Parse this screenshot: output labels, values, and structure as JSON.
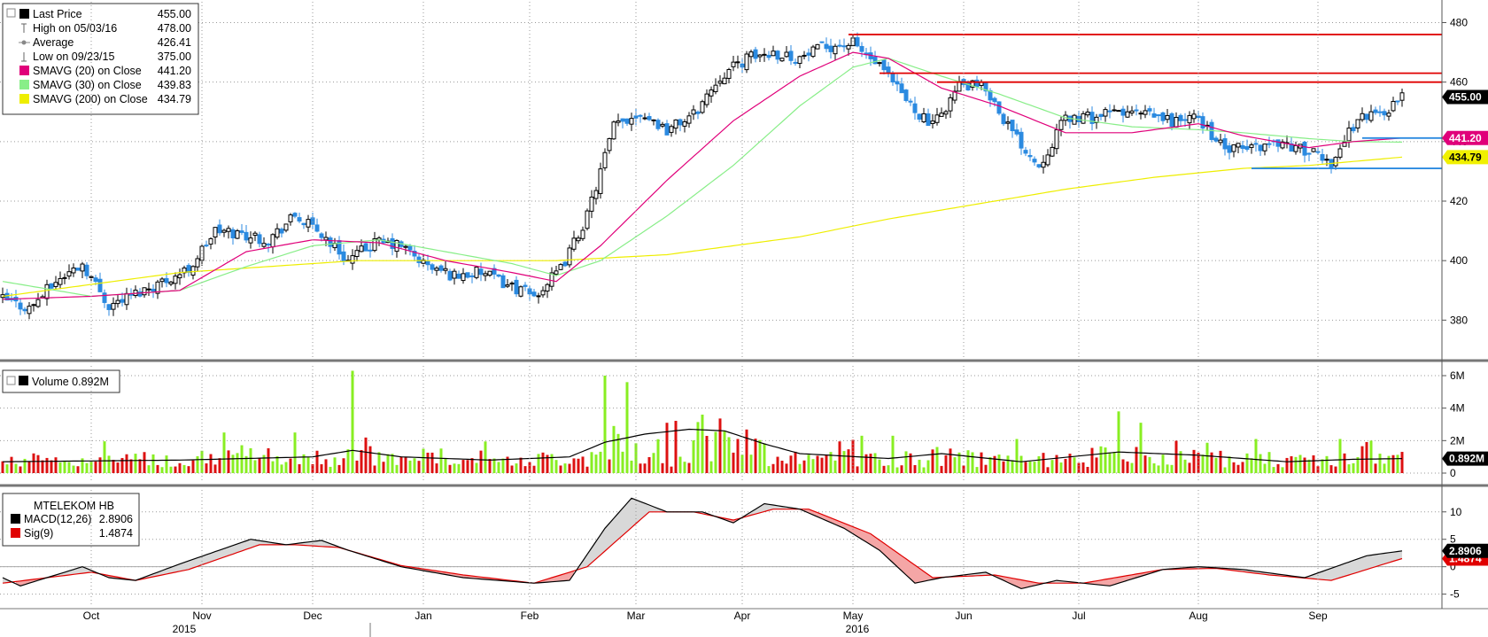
{
  "chart_data": [
    {
      "type": "candlestick",
      "panel": "price",
      "legend": [
        {
          "label": "Last Price",
          "value": "455.00",
          "color": "#000000",
          "marker": "square"
        },
        {
          "label": "High on 05/03/16",
          "value": "478.00",
          "color": "#666666",
          "marker": "high"
        },
        {
          "label": "Average",
          "value": "426.41",
          "color": "#888888",
          "marker": "avg"
        },
        {
          "label": "Low on 09/23/15",
          "value": "375.00",
          "color": "#666666",
          "marker": "low"
        },
        {
          "label": "SMAVG (20) on Close",
          "value": "441.20",
          "color": "#e0007a",
          "marker": "square"
        },
        {
          "label": "SMAVG (30) on Close",
          "value": "439.83",
          "color": "#88ee88",
          "marker": "square"
        },
        {
          "label": "SMAVG (200) on Close",
          "value": "434.79",
          "color": "#eeee00",
          "marker": "square"
        }
      ],
      "yticks": [
        380,
        400,
        420,
        440,
        460,
        480
      ],
      "ylim": [
        367,
        487
      ],
      "last_tags": [
        {
          "value": 455.0,
          "label": "455.00",
          "bg": "#000000",
          "fg": "#ffffff"
        },
        {
          "value": 441.2,
          "label": "441.20",
          "bg": "#e0007a",
          "fg": "#ffffff"
        },
        {
          "value": 434.79,
          "label": "434.79",
          "bg": "#f0f000",
          "fg": "#000000"
        }
      ],
      "close_anchors": [
        [
          0,
          387
        ],
        [
          6,
          384
        ],
        [
          12,
          393
        ],
        [
          18,
          399
        ],
        [
          24,
          385
        ],
        [
          30,
          389
        ],
        [
          36,
          393
        ],
        [
          42,
          397
        ],
        [
          48,
          410
        ],
        [
          54,
          409
        ],
        [
          60,
          407
        ],
        [
          66,
          415
        ],
        [
          72,
          409
        ],
        [
          78,
          400
        ],
        [
          84,
          406
        ],
        [
          90,
          405
        ],
        [
          96,
          398
        ],
        [
          102,
          395
        ],
        [
          108,
          396
        ],
        [
          114,
          392
        ],
        [
          120,
          388
        ],
        [
          126,
          397
        ],
        [
          132,
          415
        ],
        [
          138,
          445
        ],
        [
          144,
          450
        ],
        [
          150,
          444
        ],
        [
          156,
          449
        ],
        [
          162,
          462
        ],
        [
          168,
          468
        ],
        [
          174,
          470
        ],
        [
          180,
          468
        ],
        [
          186,
          472
        ],
        [
          192,
          473
        ],
        [
          198,
          465
        ],
        [
          204,
          454
        ],
        [
          210,
          445
        ],
        [
          216,
          459
        ],
        [
          222,
          458
        ],
        [
          228,
          443
        ],
        [
          234,
          432
        ],
        [
          240,
          448
        ],
        [
          246,
          448
        ],
        [
          252,
          450
        ],
        [
          258,
          449
        ],
        [
          264,
          447
        ],
        [
          270,
          448
        ],
        [
          276,
          437
        ],
        [
          282,
          438
        ],
        [
          288,
          440
        ],
        [
          294,
          437
        ],
        [
          300,
          433
        ],
        [
          306,
          448
        ],
        [
          312,
          450
        ],
        [
          316,
          455
        ]
      ],
      "sma20_anchors": [
        [
          0,
          387
        ],
        [
          20,
          388
        ],
        [
          40,
          390
        ],
        [
          55,
          403
        ],
        [
          70,
          407
        ],
        [
          85,
          406
        ],
        [
          100,
          400
        ],
        [
          115,
          396
        ],
        [
          125,
          393
        ],
        [
          135,
          405
        ],
        [
          150,
          427
        ],
        [
          165,
          447
        ],
        [
          180,
          462
        ],
        [
          192,
          470
        ],
        [
          200,
          468
        ],
        [
          212,
          458
        ],
        [
          225,
          452
        ],
        [
          240,
          443
        ],
        [
          255,
          443
        ],
        [
          270,
          446
        ],
        [
          280,
          442
        ],
        [
          295,
          438
        ],
        [
          305,
          440
        ],
        [
          316,
          441.2
        ]
      ],
      "sma30_anchors": [
        [
          0,
          393
        ],
        [
          20,
          388
        ],
        [
          40,
          390
        ],
        [
          55,
          398
        ],
        [
          70,
          405
        ],
        [
          85,
          407
        ],
        [
          100,
          403
        ],
        [
          115,
          399
        ],
        [
          125,
          395
        ],
        [
          135,
          400
        ],
        [
          150,
          415
        ],
        [
          165,
          432
        ],
        [
          180,
          452
        ],
        [
          192,
          465
        ],
        [
          200,
          468
        ],
        [
          212,
          462
        ],
        [
          225,
          456
        ],
        [
          240,
          448
        ],
        [
          255,
          445
        ],
        [
          270,
          444
        ],
        [
          280,
          443
        ],
        [
          295,
          441
        ],
        [
          305,
          440
        ],
        [
          316,
          439.83
        ]
      ],
      "sma200_anchors": [
        [
          0,
          388
        ],
        [
          40,
          396
        ],
        [
          80,
          400
        ],
        [
          125,
          400
        ],
        [
          150,
          402
        ],
        [
          180,
          408
        ],
        [
          200,
          414
        ],
        [
          220,
          419
        ],
        [
          240,
          424
        ],
        [
          260,
          428
        ],
        [
          280,
          431
        ],
        [
          295,
          432
        ],
        [
          316,
          434.79
        ]
      ],
      "hlines": [
        {
          "y": 476.0,
          "x_start": 191,
          "color": "#e00000"
        },
        {
          "y": 463.0,
          "x_start": 198,
          "color": "#e00000"
        },
        {
          "y": 460.0,
          "x_start": 211,
          "color": "#e00000"
        },
        {
          "y": 441.2,
          "x_start": 307,
          "color": "#2b8ae0"
        },
        {
          "y": 431.0,
          "x_start": 282,
          "color": "#2b8ae0"
        }
      ],
      "series": [
        {
          "name": "Last Price"
        },
        {
          "name": "SMAVG (20) on Close"
        },
        {
          "name": "SMAVG (30) on Close"
        },
        {
          "name": "SMAVG (200) on Close"
        }
      ]
    },
    {
      "type": "bar",
      "panel": "volume",
      "legend_label": "Volume 0.892M",
      "legend_value": "0.892M",
      "yticks": [
        0,
        2,
        4,
        6
      ],
      "ytick_labels": [
        "0",
        "2M",
        "4M",
        "6M"
      ],
      "ylim": [
        -0.6,
        6.6
      ],
      "last_value": 0.892,
      "spikes": [
        [
          79,
          6.3
        ],
        [
          66,
          2.5
        ],
        [
          50,
          2.5
        ],
        [
          136,
          6.0
        ],
        [
          141,
          5.6
        ],
        [
          138,
          2.9
        ],
        [
          158,
          3.6
        ],
        [
          163,
          2.6
        ],
        [
          194,
          2.3
        ],
        [
          201,
          2.3
        ],
        [
          229,
          2.1
        ],
        [
          252,
          3.8
        ],
        [
          257,
          3.1
        ],
        [
          283,
          2.1
        ],
        [
          302,
          2.1
        ],
        [
          309,
          2.0
        ]
      ],
      "ma_anchors": [
        [
          0,
          0.7
        ],
        [
          40,
          0.8
        ],
        [
          70,
          1.0
        ],
        [
          79,
          1.4
        ],
        [
          90,
          1.0
        ],
        [
          110,
          0.8
        ],
        [
          128,
          1.0
        ],
        [
          136,
          1.9
        ],
        [
          145,
          2.4
        ],
        [
          155,
          2.7
        ],
        [
          163,
          2.6
        ],
        [
          172,
          1.8
        ],
        [
          180,
          1.2
        ],
        [
          200,
          0.9
        ],
        [
          212,
          1.2
        ],
        [
          230,
          0.7
        ],
        [
          252,
          1.3
        ],
        [
          270,
          1.1
        ],
        [
          290,
          0.7
        ],
        [
          305,
          0.85
        ],
        [
          316,
          0.892
        ]
      ],
      "series": [
        {
          "name": "Volume"
        }
      ]
    },
    {
      "type": "line",
      "panel": "macd",
      "title": "MTELEKOM HB",
      "legend": [
        {
          "label": "MACD(12,26)",
          "value": "2.8906",
          "color": "#000000"
        },
        {
          "label": "Sig(9)",
          "value": "1.4874",
          "color": "#e00000"
        }
      ],
      "yticks": [
        -5,
        0,
        5,
        10
      ],
      "ylim": [
        -7,
        14
      ],
      "last_tags": [
        {
          "value": 2.8906,
          "label": "2.8906",
          "bg": "#000000",
          "fg": "#ffffff"
        },
        {
          "value": 1.4874,
          "label": "1.4874",
          "bg": "#e00000",
          "fg": "#ffffff"
        }
      ],
      "macd_anchors": [
        [
          0,
          -2
        ],
        [
          4,
          -3.5
        ],
        [
          18,
          0
        ],
        [
          24,
          -2
        ],
        [
          30,
          -2.5
        ],
        [
          40,
          0.5
        ],
        [
          56,
          5
        ],
        [
          64,
          4
        ],
        [
          72,
          4.8
        ],
        [
          78,
          3
        ],
        [
          90,
          0
        ],
        [
          104,
          -2
        ],
        [
          120,
          -3
        ],
        [
          128,
          -2.5
        ],
        [
          136,
          7
        ],
        [
          142,
          12.5
        ],
        [
          150,
          10
        ],
        [
          158,
          10
        ],
        [
          165,
          8
        ],
        [
          172,
          11.5
        ],
        [
          180,
          10.5
        ],
        [
          190,
          7
        ],
        [
          198,
          3
        ],
        [
          206,
          -3
        ],
        [
          212,
          -2
        ],
        [
          222,
          -1
        ],
        [
          230,
          -4
        ],
        [
          238,
          -2.5
        ],
        [
          250,
          -3.5
        ],
        [
          262,
          -0.5
        ],
        [
          270,
          0
        ],
        [
          280,
          -0.5
        ],
        [
          294,
          -2
        ],
        [
          308,
          2
        ],
        [
          316,
          2.8906
        ]
      ],
      "sig_anchors": [
        [
          0,
          -3
        ],
        [
          10,
          -2
        ],
        [
          20,
          -1
        ],
        [
          30,
          -2.5
        ],
        [
          42,
          -0.5
        ],
        [
          58,
          4
        ],
        [
          66,
          4
        ],
        [
          76,
          3.5
        ],
        [
          90,
          0.2
        ],
        [
          104,
          -1.5
        ],
        [
          120,
          -3
        ],
        [
          132,
          0
        ],
        [
          146,
          10
        ],
        [
          156,
          10
        ],
        [
          165,
          8.5
        ],
        [
          174,
          10.5
        ],
        [
          182,
          10.5
        ],
        [
          196,
          6
        ],
        [
          210,
          -2
        ],
        [
          224,
          -1.5
        ],
        [
          234,
          -3
        ],
        [
          244,
          -3
        ],
        [
          262,
          -0.5
        ],
        [
          274,
          -0.3
        ],
        [
          286,
          -1.5
        ],
        [
          300,
          -2.5
        ],
        [
          310,
          0
        ],
        [
          316,
          1.4874
        ]
      ],
      "series": [
        {
          "name": "MACD(12,26)"
        },
        {
          "name": "Sig(9)"
        }
      ]
    }
  ],
  "xaxis": {
    "months": [
      {
        "label": "Oct",
        "i": 20
      },
      {
        "label": "Nov",
        "i": 45
      },
      {
        "label": "Dec",
        "i": 70
      },
      {
        "label": "Jan",
        "i": 95
      },
      {
        "label": "Feb",
        "i": 119
      },
      {
        "label": "Mar",
        "i": 143
      },
      {
        "label": "Apr",
        "i": 167
      },
      {
        "label": "May",
        "i": 192
      },
      {
        "label": "Jun",
        "i": 217
      },
      {
        "label": "Jul",
        "i": 243
      },
      {
        "label": "Aug",
        "i": 270
      },
      {
        "label": "Sep",
        "i": 297
      }
    ],
    "years": [
      {
        "label": "2015",
        "i": 41
      },
      {
        "label": "2016",
        "i": 193
      }
    ],
    "year_divider_i": 83
  },
  "colors": {
    "up_candle": "#000000",
    "down_candle": "#2b8ae0",
    "vol_up": "#88ee22",
    "vol_down": "#dd1111",
    "sma20": "#e0007a",
    "sma30": "#88ee88",
    "sma200": "#eeee00",
    "macd": "#000000",
    "signal": "#e00000"
  }
}
